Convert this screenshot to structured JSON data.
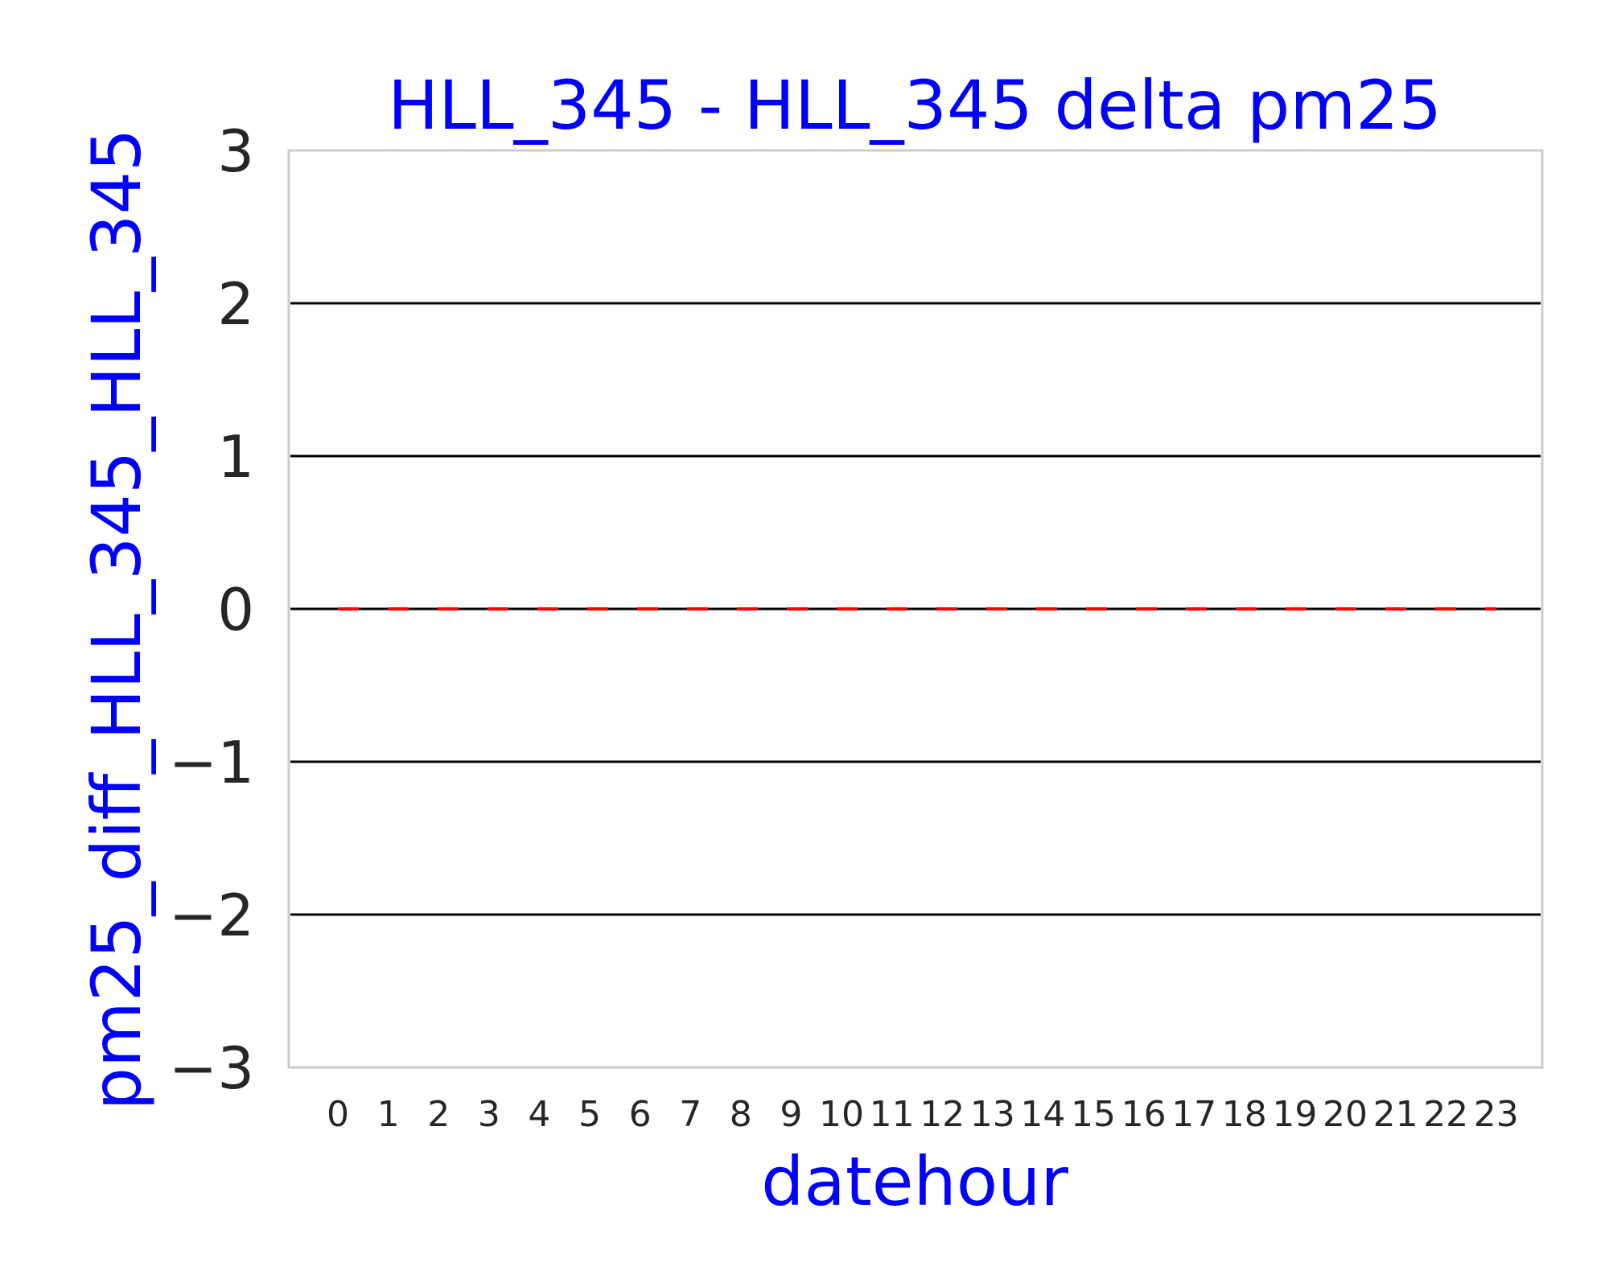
{
  "colors": {
    "label": "#0000ff",
    "tick": "#262626",
    "frame": "#cccccc",
    "gridline": "#000000",
    "series": "#ff0000"
  },
  "chart_data": {
    "type": "line",
    "title": "HLL_345 - HLL_345 delta pm25",
    "xlabel": "datehour",
    "ylabel": "pm25_diff_HLL_345_HLL_345",
    "categories": [
      "0",
      "1",
      "2",
      "3",
      "4",
      "5",
      "6",
      "7",
      "8",
      "9",
      "10",
      "11",
      "12",
      "13",
      "14",
      "15",
      "16",
      "17",
      "18",
      "19",
      "20",
      "21",
      "22",
      "23"
    ],
    "series": [
      {
        "values": [
          0,
          0,
          0,
          0,
          0,
          0,
          0,
          0,
          0,
          0,
          0,
          0,
          0,
          0,
          0,
          0,
          0,
          0,
          0,
          0,
          0,
          0,
          0,
          0
        ],
        "color": "#ff0000",
        "style": "dashed"
      }
    ],
    "ylim": [
      -3,
      3
    ],
    "yticks": [
      -3,
      -2,
      -1,
      0,
      1,
      2,
      3
    ],
    "ytick_labels": [
      "−3",
      "−2",
      "−1",
      "0",
      "1",
      "2",
      "3"
    ],
    "hlines": [
      -2,
      -1,
      0,
      1,
      2
    ],
    "grid": false,
    "legend": false
  }
}
